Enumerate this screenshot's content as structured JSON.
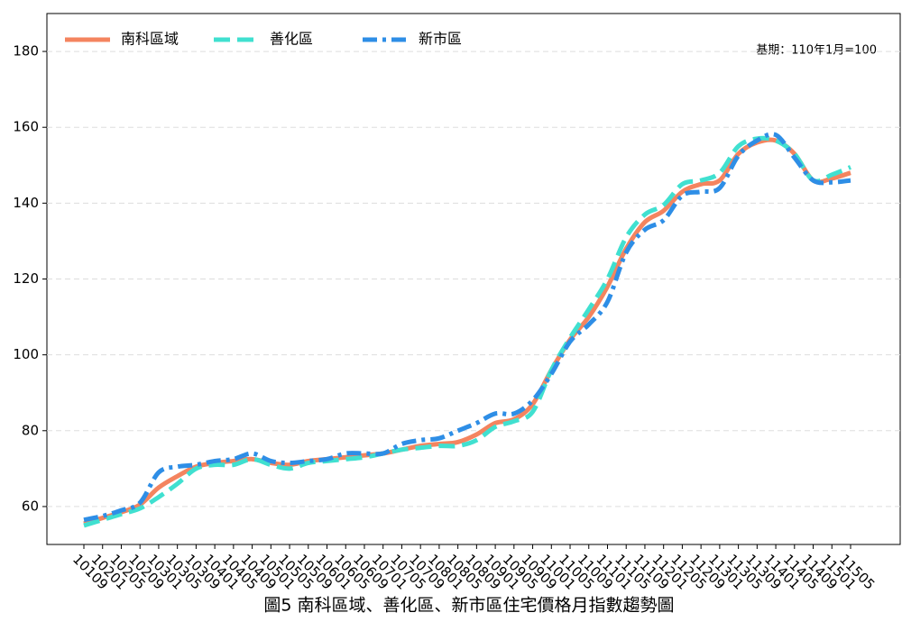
{
  "chart_data": {
    "type": "line",
    "title": "圖5  南科區域、善化區、新市區住宅價格月指數趨勢圖",
    "annotation": "基期：110年1月=100",
    "categories": [
      "10109",
      "10201",
      "10205",
      "10209",
      "10301",
      "10305",
      "10309",
      "10401",
      "10405",
      "10409",
      "10501",
      "10505",
      "10509",
      "10601",
      "10605",
      "10609",
      "10701",
      "10705",
      "10709",
      "10801",
      "10805",
      "10809",
      "10901",
      "10905",
      "10909",
      "11001",
      "11005",
      "11009",
      "11101",
      "11105",
      "11109",
      "11201",
      "11205",
      "11209",
      "11301",
      "11305",
      "11309",
      "11401",
      "11405",
      "11409",
      "11501",
      "11505"
    ],
    "series": [
      {
        "name": "南科區域",
        "color": "#f4845f",
        "dash": "solid",
        "values": [
          55.5,
          57,
          58.5,
          60.5,
          65,
          68,
          70.5,
          71.5,
          72,
          72.5,
          71.5,
          71,
          72,
          72.5,
          73,
          73.5,
          74,
          75,
          76,
          76.5,
          77,
          79,
          82,
          83,
          87,
          96,
          104,
          110,
          118,
          128,
          135,
          138,
          143,
          145,
          146,
          153,
          156,
          156.5,
          153,
          146,
          146.5,
          148
        ]
      },
      {
        "name": "善化區",
        "color": "#40e0d0",
        "dash": "dashed",
        "values": [
          55,
          56.5,
          58,
          59.5,
          62.5,
          66,
          70,
          71,
          71,
          72.5,
          71,
          70,
          71.5,
          72,
          72.5,
          73,
          74,
          75,
          75.5,
          76,
          76,
          77.5,
          81,
          82.5,
          85,
          96,
          104.5,
          112,
          120,
          131,
          137,
          139.5,
          145,
          146,
          148,
          155,
          157,
          156.5,
          153,
          146,
          147.5,
          149.5
        ]
      },
      {
        "name": "新市區",
        "color": "#2e8ee6",
        "dash": "dashdot",
        "values": [
          56.5,
          57.5,
          59,
          61,
          69,
          70.5,
          71,
          72,
          72.5,
          74,
          72,
          71.5,
          72,
          72.5,
          74,
          74,
          74,
          76.5,
          77.5,
          78,
          80,
          82,
          84.5,
          84.5,
          88,
          95,
          103.5,
          108,
          114,
          127,
          133,
          135.5,
          142,
          143,
          144,
          152.5,
          156.5,
          158,
          152,
          146,
          145.5,
          146
        ]
      }
    ],
    "ylim": [
      50,
      190
    ],
    "yticks": [
      60,
      80,
      100,
      120,
      140,
      160,
      180
    ],
    "grid": true,
    "legend": "upper left"
  }
}
